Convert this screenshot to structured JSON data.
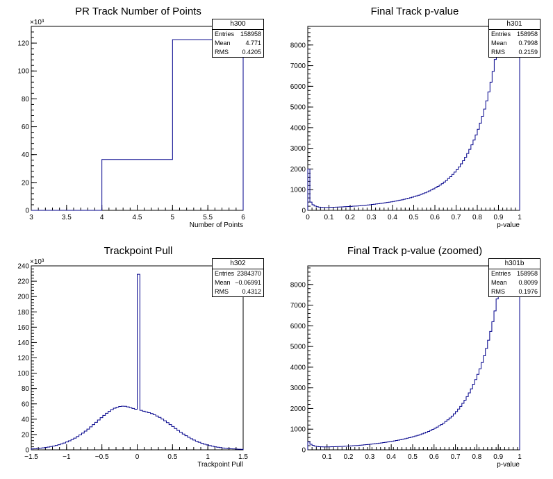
{
  "chart_data": [
    {
      "type": "histogram",
      "title": "PR Track Number of Points",
      "xlabel": "Number of Points",
      "exponent_label": "×10³",
      "xlim": [
        3,
        6
      ],
      "ylim": [
        0,
        132
      ],
      "xticks": [
        3,
        3.5,
        4,
        4.5,
        5,
        5.5,
        6
      ],
      "xtick_labels": [
        "3",
        "3.5",
        "4",
        "4.5",
        "5",
        "5.5",
        "6"
      ],
      "yticks": [
        0,
        20,
        40,
        60,
        80,
        100,
        120
      ],
      "ytick_labels": [
        "0",
        "20",
        "40",
        "60",
        "80",
        "100",
        "120"
      ],
      "bin_edges": [
        3,
        4,
        5,
        6
      ],
      "values": [
        0,
        36.5,
        122.5
      ],
      "line_color": "#00008b",
      "stats": {
        "name": "h300",
        "rows": [
          [
            "Entries",
            "158958"
          ],
          [
            "Mean",
            "4.771"
          ],
          [
            "RMS",
            "0.4205"
          ]
        ]
      }
    },
    {
      "type": "histogram",
      "title": "Final Track p-value",
      "xlabel": "p-value",
      "exponent_label": "",
      "xlim": [
        0,
        1
      ],
      "ylim": [
        0,
        8900
      ],
      "xticks": [
        0,
        0.1,
        0.2,
        0.3,
        0.4,
        0.5,
        0.6,
        0.7,
        0.8,
        0.9,
        1
      ],
      "xtick_labels": [
        "0",
        "0.1",
        "0.2",
        "0.3",
        "0.4",
        "0.5",
        "0.6",
        "0.7",
        "0.8",
        "0.9",
        "1"
      ],
      "yticks": [
        0,
        1000,
        2000,
        3000,
        4000,
        5000,
        6000,
        7000,
        8000
      ],
      "ytick_labels": [
        "0",
        "1000",
        "2000",
        "3000",
        "4000",
        "5000",
        "6000",
        "7000",
        "8000"
      ],
      "bin_edges_range": [
        0,
        1
      ],
      "values": [
        2000,
        400,
        270,
        210,
        175,
        155,
        145,
        140,
        140,
        140,
        145,
        150,
        150,
        155,
        160,
        165,
        170,
        175,
        180,
        185,
        190,
        200,
        205,
        210,
        220,
        230,
        240,
        250,
        260,
        270,
        285,
        295,
        310,
        320,
        335,
        350,
        365,
        380,
        395,
        410,
        430,
        450,
        470,
        490,
        510,
        535,
        560,
        585,
        610,
        640,
        670,
        700,
        730,
        770,
        810,
        850,
        890,
        940,
        990,
        1040,
        1100,
        1160,
        1220,
        1290,
        1370,
        1450,
        1540,
        1630,
        1740,
        1850,
        1970,
        2100,
        2250,
        2400,
        2570,
        2750,
        2950,
        3170,
        3400,
        3650,
        3920,
        4220,
        4550,
        4900,
        5300,
        5730,
        6200,
        6720,
        7300,
        7920,
        8600,
        8850,
        8850,
        8850,
        8850,
        8850,
        8850,
        8850,
        8850,
        8850
      ],
      "line_color": "#00008b",
      "stats": {
        "name": "h301",
        "rows": [
          [
            "Entries",
            "158958"
          ],
          [
            "Mean",
            "0.7998"
          ],
          [
            "RMS",
            "0.2159"
          ]
        ]
      }
    },
    {
      "type": "histogram",
      "title": "Trackpoint Pull",
      "xlabel": "Trackpoint Pull",
      "exponent_label": "×10³",
      "xlim": [
        -1.5,
        1.5
      ],
      "ylim": [
        0,
        240
      ],
      "xticks": [
        -1.5,
        -1,
        -0.5,
        0,
        0.5,
        1,
        1.5
      ],
      "xtick_labels": [
        "−1.5",
        "−1",
        "−0.5",
        "0",
        "0.5",
        "1",
        "1.5"
      ],
      "yticks": [
        0,
        20,
        40,
        60,
        80,
        100,
        120,
        140,
        160,
        180,
        200,
        220,
        240
      ],
      "ytick_labels": [
        "0",
        "20",
        "40",
        "60",
        "80",
        "100",
        "120",
        "140",
        "160",
        "180",
        "200",
        "220",
        "240"
      ],
      "bin_edges_range": [
        -1.5,
        1.5
      ],
      "values": [
        1.2,
        1.5,
        1.8,
        2.2,
        2.6,
        3.1,
        3.6,
        4.3,
        5.0,
        5.8,
        6.7,
        7.8,
        9.0,
        10.3,
        11.8,
        13.5,
        15.3,
        17.3,
        19.5,
        21.9,
        24.4,
        27.1,
        30.0,
        32.9,
        35.9,
        39.0,
        42.0,
        44.9,
        47.7,
        50.2,
        52.5,
        54.3,
        55.7,
        56.6,
        57.0,
        56.8,
        56.0,
        55.0,
        54.0,
        53.0,
        229.0,
        51.5,
        50.4,
        49.5,
        48.5,
        47.3,
        45.9,
        44.2,
        42.3,
        40.2,
        37.9,
        35.5,
        33.0,
        30.4,
        27.8,
        25.3,
        22.9,
        20.6,
        18.4,
        16.4,
        14.5,
        12.8,
        11.2,
        9.8,
        8.5,
        7.4,
        6.4,
        5.5,
        4.7,
        4.0,
        3.4,
        2.9,
        2.4,
        2.0,
        1.7,
        1.4,
        1.2,
        1.0,
        0.8,
        0.7
      ],
      "line_color": "#00008b",
      "stats": {
        "name": "h302",
        "rows": [
          [
            "Entries",
            "2384370"
          ],
          [
            "Mean",
            "−0.06991"
          ],
          [
            "RMS",
            "0.4312"
          ]
        ]
      }
    },
    {
      "type": "histogram",
      "title": "Final Track p-value (zoomed)",
      "xlabel": "p-value",
      "exponent_label": "",
      "xlim": [
        0.01,
        1
      ],
      "ylim": [
        0,
        8900
      ],
      "xticks": [
        0.1,
        0.2,
        0.3,
        0.4,
        0.5,
        0.6,
        0.7,
        0.8,
        0.9,
        1
      ],
      "xtick_labels": [
        "0.1",
        "0.2",
        "0.3",
        "0.4",
        "0.5",
        "0.6",
        "0.7",
        "0.8",
        "0.9",
        "1"
      ],
      "yticks": [
        0,
        1000,
        2000,
        3000,
        4000,
        5000,
        6000,
        7000,
        8000
      ],
      "ytick_labels": [
        "0",
        "1000",
        "2000",
        "3000",
        "4000",
        "5000",
        "6000",
        "7000",
        "8000"
      ],
      "bin_edges_range": [
        0.01,
        1
      ],
      "values": [
        380,
        270,
        215,
        180,
        160,
        150,
        145,
        142,
        142,
        143,
        147,
        150,
        153,
        157,
        161,
        165,
        170,
        175,
        180,
        186,
        192,
        200,
        206,
        212,
        222,
        232,
        242,
        252,
        262,
        272,
        287,
        297,
        312,
        322,
        337,
        352,
        367,
        382,
        397,
        412,
        432,
        452,
        472,
        492,
        512,
        537,
        562,
        587,
        612,
        642,
        672,
        702,
        732,
        772,
        812,
        852,
        892,
        942,
        992,
        1042,
        1102,
        1162,
        1222,
        1292,
        1372,
        1452,
        1542,
        1632,
        1742,
        1852,
        1972,
        2102,
        2252,
        2402,
        2572,
        2752,
        2952,
        3172,
        3402,
        3652,
        3922,
        4222,
        4552,
        4902,
        5302,
        5732,
        6202,
        6722,
        7302,
        7922,
        8600,
        8850,
        8850,
        8850,
        8850,
        8850,
        8850,
        8850,
        8850
      ],
      "line_color": "#00008b",
      "stats": {
        "name": "h301b",
        "rows": [
          [
            "Entries",
            "158958"
          ],
          [
            "Mean",
            "0.8099"
          ],
          [
            "RMS",
            "0.1976"
          ]
        ]
      }
    }
  ]
}
